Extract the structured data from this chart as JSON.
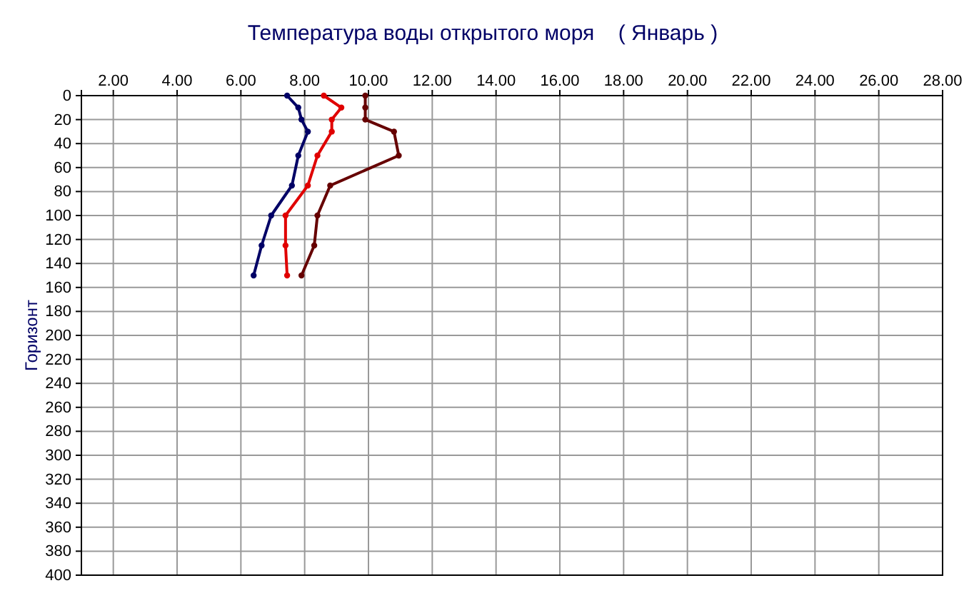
{
  "chart_data": {
    "type": "line",
    "title": "Температура воды открытого моря    ( Январь )",
    "ylabel": "Горизонт",
    "xlim": [
      1,
      28
    ],
    "xticks": [
      {
        "value": 2,
        "label": "2.00"
      },
      {
        "value": 4,
        "label": "4.00"
      },
      {
        "value": 6,
        "label": "6.00"
      },
      {
        "value": 8,
        "label": "8.00"
      },
      {
        "value": 10,
        "label": "10.00"
      },
      {
        "value": 12,
        "label": "12.00"
      },
      {
        "value": 14,
        "label": "14.00"
      },
      {
        "value": 16,
        "label": "16.00"
      },
      {
        "value": 18,
        "label": "18.00"
      },
      {
        "value": 20,
        "label": "20.00"
      },
      {
        "value": 22,
        "label": "22.00"
      },
      {
        "value": 24,
        "label": "24.00"
      },
      {
        "value": 26,
        "label": "26.00"
      },
      {
        "value": 28,
        "label": "28.00"
      }
    ],
    "ylim": [
      400,
      0
    ],
    "yticks": [
      0,
      20,
      40,
      60,
      80,
      100,
      120,
      140,
      160,
      180,
      200,
      220,
      240,
      260,
      280,
      300,
      320,
      340,
      360,
      380,
      400
    ],
    "grid": true,
    "marker": "circle",
    "line_style": "solid",
    "series": [
      {
        "color": "#000066",
        "x": [
          7.45,
          7.8,
          7.9,
          8.1,
          7.8,
          7.6,
          6.95,
          6.65,
          6.4
        ],
        "values": [
          0,
          10,
          20,
          30,
          50,
          75,
          100,
          125,
          150
        ]
      },
      {
        "color": "#e00000",
        "x": [
          8.6,
          9.15,
          8.85,
          8.85,
          8.4,
          8.1,
          7.4,
          7.4,
          7.45
        ],
        "values": [
          0,
          10,
          20,
          30,
          50,
          75,
          100,
          125,
          150
        ]
      },
      {
        "color": "#660000",
        "x": [
          9.9,
          9.9,
          9.9,
          10.8,
          10.95,
          8.8,
          8.4,
          8.3,
          7.9
        ],
        "values": [
          0,
          10,
          20,
          30,
          50,
          75,
          100,
          125,
          150
        ]
      }
    ]
  }
}
